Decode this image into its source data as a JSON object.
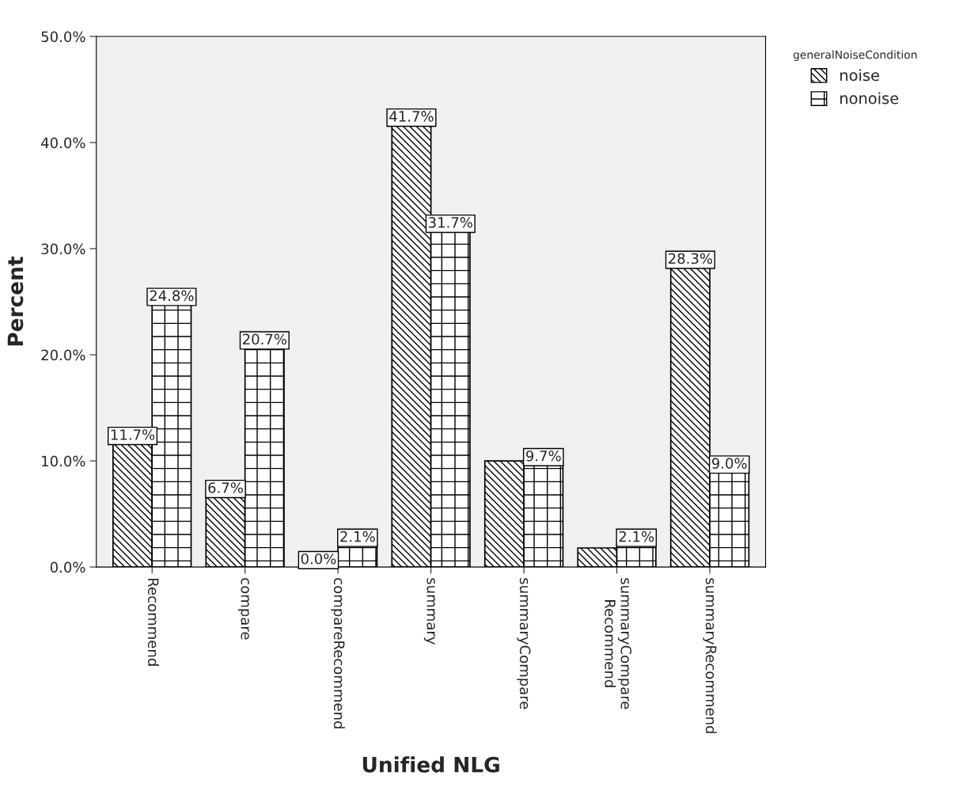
{
  "chart_data": {
    "type": "bar",
    "xlabel": "Unified NLG",
    "ylabel": "Percent",
    "legend_title": "generalNoiseCondition",
    "categories": [
      "Recommend",
      "compare",
      "compareRecommend",
      "summary",
      "summaryCompare",
      "summaryCompare\nRecommend",
      "summaryRecommend"
    ],
    "series": [
      {
        "name": "noise",
        "color": "#000000",
        "values": [
          11.7,
          6.7,
          0.0,
          41.7,
          10.0,
          1.8,
          28.3
        ],
        "value_labels": [
          "11.7%",
          "6.7%",
          "0.0%",
          "41.7%",
          null,
          null,
          "28.3%"
        ]
      },
      {
        "name": "nonoise",
        "color": "#000000",
        "values": [
          24.8,
          20.7,
          2.1,
          31.7,
          9.7,
          2.1,
          9.0
        ],
        "value_labels": [
          "24.8%",
          "20.7%",
          "2.1%",
          "31.7%",
          "9.7%",
          "2.1%",
          "9.0%"
        ]
      }
    ],
    "ylim": [
      0,
      50
    ],
    "yticks": [
      {
        "value": 0,
        "label": "0.0%"
      },
      {
        "value": 10,
        "label": "10.0%"
      },
      {
        "value": 20,
        "label": "20.0%"
      },
      {
        "value": 30,
        "label": "30.0%"
      },
      {
        "value": 40,
        "label": "40.0%"
      },
      {
        "value": 50,
        "label": "50.0%"
      }
    ],
    "grid": false,
    "legend": "top right"
  }
}
